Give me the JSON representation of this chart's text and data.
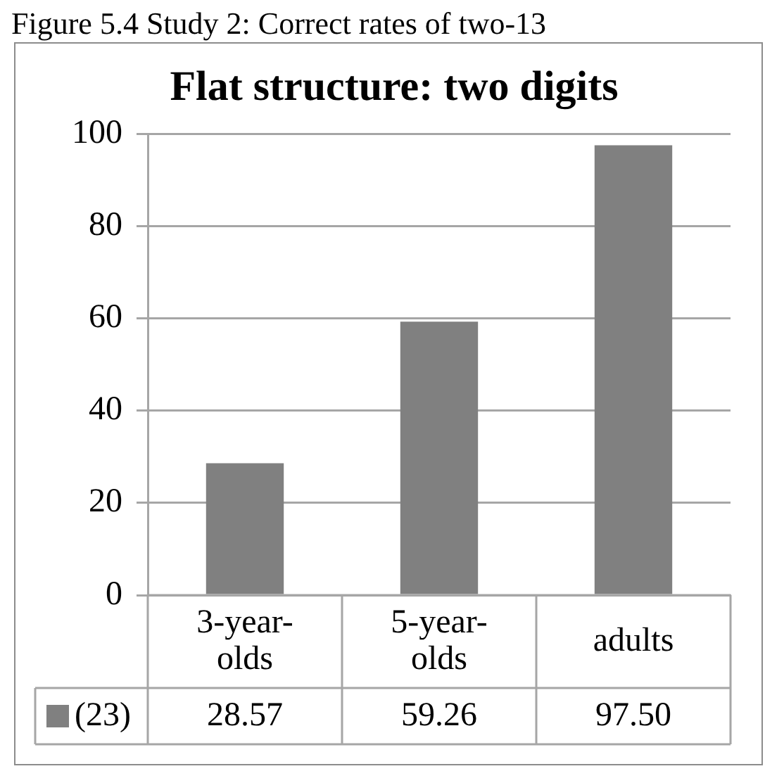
{
  "chart_data": {
    "type": "bar",
    "title": "Flat structure: two digits",
    "annotations": [
      "Figure 5.4 Study 2: Correct rates of two-13"
    ],
    "categories": [
      "3-year-olds",
      "5-year-olds",
      "adults"
    ],
    "series": [
      {
        "name": "(23)",
        "color": "#808080",
        "values": [
          28.57,
          59.26,
          97.5
        ],
        "value_labels": [
          "28.57",
          "59.26",
          "97.50"
        ]
      }
    ],
    "ylim": [
      0,
      100
    ],
    "yticks": [
      0,
      20,
      40,
      60,
      80,
      100
    ],
    "grid": "y",
    "legend": "bottom",
    "data_labels": true
  }
}
